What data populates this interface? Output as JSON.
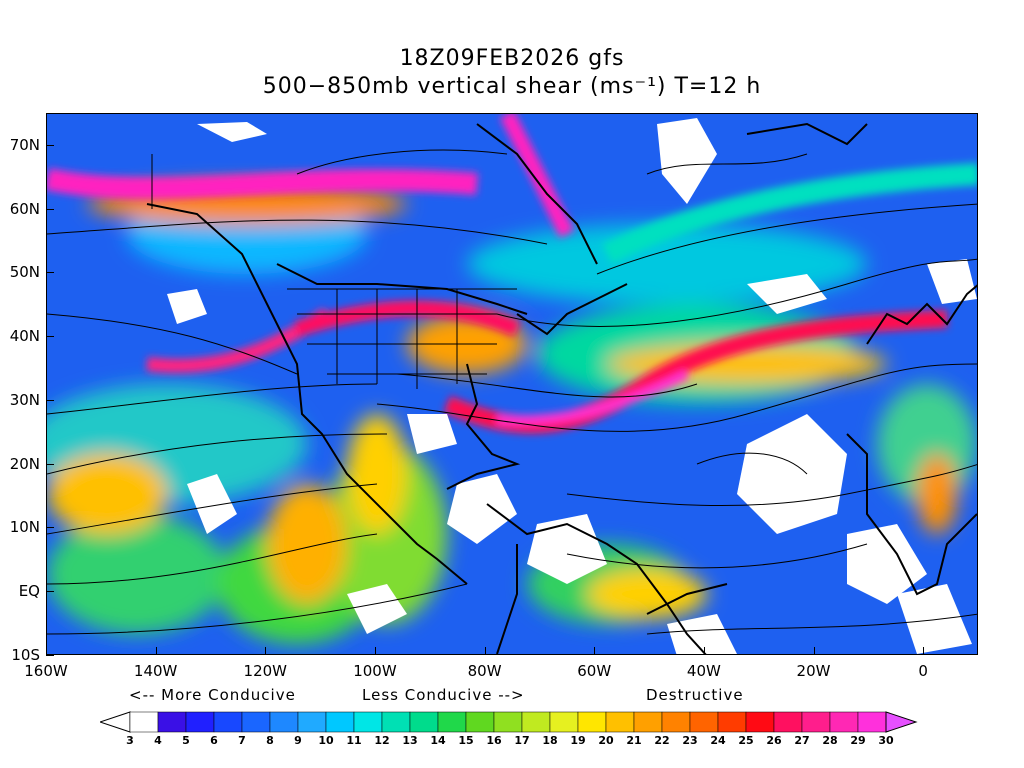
{
  "title_line1": "18Z09FEB2026 gfs",
  "title_line2": "500−850mb vertical shear (ms⁻¹) T=12 h",
  "y_axis_labels": [
    "70N",
    "60N",
    "50N",
    "40N",
    "30N",
    "20N",
    "10N",
    "EQ",
    "10S"
  ],
  "x_axis_labels": [
    "160W",
    "140W",
    "120W",
    "100W",
    "80W",
    "60W",
    "40W",
    "20W",
    "0"
  ],
  "legend": {
    "more_conducive": "<-- More Conducive",
    "less_conducive": "Less Conducive -->",
    "destructive": "Destructive",
    "levels": [
      "3",
      "4",
      "5",
      "6",
      "7",
      "8",
      "9",
      "10",
      "11",
      "12",
      "13",
      "14",
      "15",
      "16",
      "17",
      "18",
      "19",
      "20",
      "21",
      "22",
      "23",
      "24",
      "25",
      "26",
      "27",
      "28",
      "29",
      "30"
    ],
    "colors": [
      "#ffffff",
      "#3a10e6",
      "#2020ff",
      "#1848ff",
      "#1a66ff",
      "#1e88ff",
      "#20aaff",
      "#00c8ff",
      "#00e6e6",
      "#00e0b4",
      "#00dc8c",
      "#20d84a",
      "#60d820",
      "#90e020",
      "#c0ea20",
      "#e6f020",
      "#ffe600",
      "#ffc000",
      "#ffa000",
      "#ff8200",
      "#ff6400",
      "#ff3c00",
      "#ff0a14",
      "#ff1060",
      "#ff1e8c",
      "#ff28b4",
      "#ff30dc",
      "#e650ff"
    ]
  },
  "map": {
    "lon_range": [
      -160,
      10
    ],
    "lat_range": [
      -10,
      75
    ],
    "variable": "500-850mb vertical shear",
    "units": "m/s"
  }
}
